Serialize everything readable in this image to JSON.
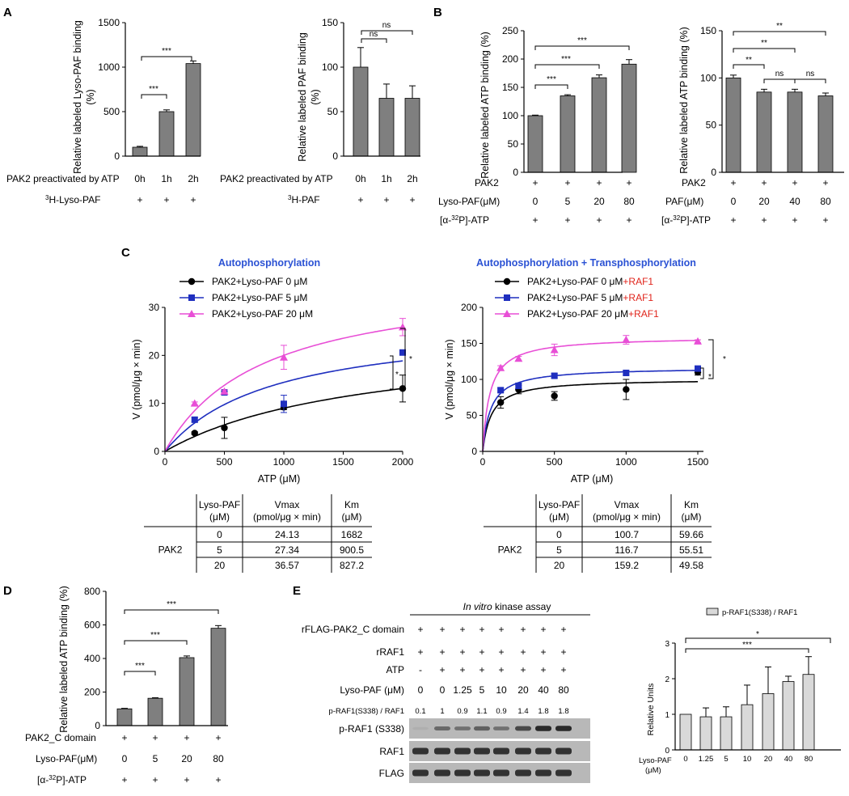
{
  "panelA": {
    "letter": "A",
    "left": {
      "ylabel_l1": "Relative labeled Lyso-PAF binding",
      "ylabel_l2": "(%)",
      "yticks": [
        "0",
        "500",
        "1000",
        "1500"
      ],
      "row1_label": "PAK2 preactivated by ATP",
      "row1_vals": [
        "0h",
        "1h",
        "2h"
      ],
      "row2_label": "H-Lyso-PAF",
      "row2_sup": "3",
      "row2_vals": [
        "+",
        "+",
        "+"
      ],
      "sig": [
        "***",
        "***"
      ]
    },
    "right": {
      "ylabel_l1": "Relative labeled PAF binding",
      "ylabel_l2": "(%)",
      "yticks": [
        "0",
        "50",
        "100",
        "150"
      ],
      "row1_label": "PAK2 preactivated by ATP",
      "row1_vals": [
        "0h",
        "1h",
        "2h"
      ],
      "row2_label": "H-PAF",
      "row2_sup": "3",
      "row2_vals": [
        "+",
        "+",
        "+"
      ],
      "sig": [
        "ns",
        "ns"
      ]
    }
  },
  "panelB": {
    "letter": "B",
    "left": {
      "ylabel": "Relative labeled ATP binding (%)",
      "yticks": [
        "0",
        "50",
        "100",
        "150",
        "200",
        "250"
      ],
      "row1_label": "PAK2",
      "row1_vals": [
        "+",
        "+",
        "+",
        "+"
      ],
      "row2_label": "Lyso-PAF(μM)",
      "row2_vals": [
        "0",
        "5",
        "20",
        "80"
      ],
      "row3_pre": "[α-",
      "row3_sup": "32",
      "row3_post": "P]-ATP",
      "row3_vals": [
        "+",
        "+",
        "+",
        "+"
      ],
      "sig": [
        "***",
        "***",
        "***"
      ]
    },
    "right": {
      "ylabel": "Relative labeled ATP binding (%)",
      "yticks": [
        "0",
        "50",
        "100",
        "150"
      ],
      "row1_label": "PAK2",
      "row1_vals": [
        "+",
        "+",
        "+",
        "+"
      ],
      "row2_label": "PAF(μM)",
      "row2_vals": [
        "0",
        "20",
        "40",
        "80"
      ],
      "row3_pre": "[α-",
      "row3_sup": "32",
      "row3_post": "P]-ATP",
      "row3_vals": [
        "+",
        "+",
        "+",
        "+"
      ],
      "sig": [
        "**",
        "**",
        "**",
        "ns",
        "ns"
      ]
    }
  },
  "panelC": {
    "letter": "C",
    "left": {
      "title": "Autophosphorylation",
      "ylabel": "V (pmol/μg × min)",
      "xlabel": "ATP (μM)",
      "xticks": [
        "0",
        "500",
        "1000",
        "1500",
        "2000"
      ],
      "yticks": [
        "0",
        "10",
        "20",
        "30"
      ],
      "legend": [
        "PAK2+Lyso-PAF 0 μM",
        "PAK2+Lyso-PAF 5 μM",
        "PAK2+Lyso-PAF 20 μM"
      ],
      "sig": [
        "*",
        "*"
      ]
    },
    "right": {
      "title": "Autophosphorylation + Transphosphorylation",
      "ylabel": "V (pmol/μg × min)",
      "xlabel": "ATP (μM)",
      "xticks": [
        "0",
        "500",
        "1000",
        "1500"
      ],
      "yticks": [
        "0",
        "50",
        "100",
        "150",
        "200"
      ],
      "legend": [
        "PAK2+Lyso-PAF 0 μM",
        "PAK2+Lyso-PAF 5 μM",
        "PAK2+Lyso-PAF 20 μM"
      ],
      "legend_suffix": "+RAF1",
      "sig": [
        "*",
        "*"
      ]
    },
    "table_left": {
      "h1a": "Lyso-PAF",
      "h1b": "(μM)",
      "h2a": "Vmax",
      "h2b": "(pmol/μg × min)",
      "h3a": "Km",
      "h3b": "(μM)",
      "rowlabel": "PAK2",
      "rows": [
        [
          "0",
          "24.13",
          "1682"
        ],
        [
          "5",
          "27.34",
          "900.5"
        ],
        [
          "20",
          "36.57",
          "827.2"
        ]
      ]
    },
    "table_right": {
      "h1a": "Lyso-PAF",
      "h1b": "(μM)",
      "h2a": "Vmax",
      "h2b": "(pmol/μg × min)",
      "h3a": "Km",
      "h3b": "(μM)",
      "rowlabel": "PAK2",
      "rows": [
        [
          "0",
          "100.7",
          "59.66"
        ],
        [
          "5",
          "116.7",
          "55.51"
        ],
        [
          "20",
          "159.2",
          "49.58"
        ]
      ]
    }
  },
  "panelD": {
    "letter": "D",
    "ylabel": "Relative labeled ATP binding (%)",
    "yticks": [
      "0",
      "200",
      "400",
      "600",
      "800"
    ],
    "row1_label": "PAK2_C domain",
    "row1_vals": [
      "+",
      "+",
      "+",
      "+"
    ],
    "row2_label": "Lyso-PAF(μM)",
    "row2_vals": [
      "0",
      "5",
      "20",
      "80"
    ],
    "row3_pre": "[α-",
    "row3_sup": "32",
    "row3_post": "P]-ATP",
    "row3_vals": [
      "+",
      "+",
      "+",
      "+"
    ],
    "sig": [
      "***",
      "***",
      "***"
    ]
  },
  "panelE": {
    "letter": "E",
    "assay_italic": "In vitro",
    "assay_rest": " kinase assay",
    "rows": [
      {
        "label": "rFLAG-PAK2_C domain",
        "vals": [
          "+",
          "+",
          "+",
          "+",
          "+",
          "+",
          "+",
          "+"
        ]
      },
      {
        "label": "rRAF1",
        "vals": [
          "+",
          "+",
          "+",
          "+",
          "+",
          "+",
          "+",
          "+"
        ]
      },
      {
        "label": "ATP",
        "vals": [
          "-",
          "+",
          "+",
          "+",
          "+",
          "+",
          "+",
          "+"
        ]
      },
      {
        "label": "Lyso-PAF (μM)",
        "vals": [
          "0",
          "0",
          "1.25",
          "5",
          "10",
          "20",
          "40",
          "80"
        ]
      }
    ],
    "ratio_label": "p-RAF1(S338) / RAF1",
    "ratio_vals": [
      "0.1",
      "1",
      "0.9",
      "1.1",
      "0.9",
      "1.4",
      "1.8",
      "1.8"
    ],
    "blots": [
      "p-RAF1 (S338)",
      "RAF1",
      "FLAG"
    ],
    "chart": {
      "legend": "p-RAF1(S338) / RAF1",
      "ylabel": "Relative Units",
      "yticks": [
        "0",
        "1",
        "2",
        "3"
      ],
      "xlabel_a": "Lyso-PAF",
      "xlabel_b": "(μM)",
      "sig": [
        "*",
        "***"
      ]
    }
  },
  "chart_data": [
    {
      "id": "A-left",
      "type": "bar",
      "categories": [
        "0h",
        "1h",
        "2h"
      ],
      "values": [
        100,
        500,
        1040
      ],
      "errors": [
        10,
        20,
        30
      ],
      "ylim": [
        0,
        1500
      ],
      "ylabel": "Relative labeled Lyso-PAF binding (%)"
    },
    {
      "id": "A-right",
      "type": "bar",
      "categories": [
        "0h",
        "1h",
        "2h"
      ],
      "values": [
        100,
        65,
        65
      ],
      "errors": [
        22,
        16,
        14
      ],
      "ylim": [
        0,
        150
      ],
      "ylabel": "Relative labeled PAF binding (%)"
    },
    {
      "id": "B-left",
      "type": "bar",
      "categories": [
        "0",
        "5",
        "20",
        "80"
      ],
      "values": [
        100,
        135,
        167,
        191
      ],
      "errors": [
        1,
        2,
        5,
        8
      ],
      "ylim": [
        0,
        250
      ],
      "ylabel": "Relative labeled ATP binding (%)"
    },
    {
      "id": "B-right",
      "type": "bar",
      "categories": [
        "0",
        "20",
        "40",
        "80"
      ],
      "values": [
        100,
        85,
        85,
        81
      ],
      "errors": [
        3,
        3,
        3,
        3
      ],
      "ylim": [
        0,
        150
      ],
      "ylabel": "Relative labeled ATP binding (%)"
    },
    {
      "id": "C-left",
      "type": "scatter",
      "xlim": [
        0,
        2000
      ],
      "ylim": [
        0,
        30
      ],
      "xlabel": "ATP (μM)",
      "series": [
        {
          "name": "PAK2+Lyso-PAF 0 μM",
          "color": "#000000",
          "marker": "circle",
          "x": [
            250,
            500,
            1000,
            2000
          ],
          "y": [
            3.8,
            4.9,
            9.2,
            13.1
          ],
          "err": [
            0.3,
            2.2,
            0.5,
            2.8
          ],
          "vmax": 24.13,
          "km": 1682
        },
        {
          "name": "PAK2+Lyso-PAF 5 μM",
          "color": "#1f2fbf",
          "marker": "square",
          "x": [
            250,
            500,
            1000,
            2000
          ],
          "y": [
            6.6,
            12.3,
            9.9,
            20.6
          ],
          "err": [
            0.5,
            0.5,
            1.8,
            0.5
          ],
          "vmax": 27.34,
          "km": 900.5
        },
        {
          "name": "PAK2+Lyso-PAF 20 μM",
          "color": "#e84fd6",
          "marker": "triangle",
          "x": [
            250,
            500,
            1000,
            2000
          ],
          "y": [
            10.0,
            12.5,
            19.6,
            25.9
          ],
          "err": [
            0.3,
            0.3,
            2.5,
            1.8
          ],
          "vmax": 36.57,
          "km": 827.2
        }
      ]
    },
    {
      "id": "C-right",
      "type": "scatter",
      "xlim": [
        0,
        1500
      ],
      "ylim": [
        0,
        200
      ],
      "xlabel": "ATP (μM)",
      "series": [
        {
          "name": "PAK2+Lyso-PAF 0 μM+RAF1",
          "color": "#000000",
          "marker": "circle",
          "x": [
            125,
            250,
            500,
            1000,
            1500
          ],
          "y": [
            68,
            86,
            77,
            86,
            110
          ],
          "err": [
            8,
            6,
            6,
            14,
            4
          ],
          "vmax": 100.7,
          "km": 59.66
        },
        {
          "name": "PAK2+Lyso-PAF 5 μM+RAF1",
          "color": "#1f2fbf",
          "marker": "square",
          "x": [
            125,
            250,
            500,
            1000,
            1500
          ],
          "y": [
            85,
            91,
            105,
            109,
            115
          ],
          "err": [
            3,
            4,
            3,
            3,
            3
          ],
          "vmax": 116.7,
          "km": 55.51
        },
        {
          "name": "PAK2+Lyso-PAF 20 μM+RAF1",
          "color": "#e84fd6",
          "marker": "triangle",
          "x": [
            125,
            250,
            500,
            1000,
            1500
          ],
          "y": [
            116,
            129,
            141,
            155,
            153
          ],
          "err": [
            3,
            3,
            8,
            6,
            2
          ],
          "vmax": 159.2,
          "km": 49.58
        }
      ]
    },
    {
      "id": "D",
      "type": "bar",
      "categories": [
        "0",
        "5",
        "20",
        "80"
      ],
      "values": [
        100,
        163,
        405,
        580
      ],
      "errors": [
        3,
        3,
        10,
        16
      ],
      "ylim": [
        0,
        800
      ],
      "ylabel": "Relative labeled ATP binding (%)"
    },
    {
      "id": "E-chart",
      "type": "bar",
      "categories": [
        "0",
        "1.25",
        "5",
        "10",
        "20",
        "40",
        "80"
      ],
      "values": [
        1.0,
        0.93,
        0.93,
        1.27,
        1.58,
        1.92,
        2.12
      ],
      "errors": [
        0,
        0.25,
        0.28,
        0.55,
        0.75,
        0.15,
        0.5
      ],
      "ylim": [
        0,
        3
      ],
      "ylabel": "Relative Units"
    }
  ]
}
